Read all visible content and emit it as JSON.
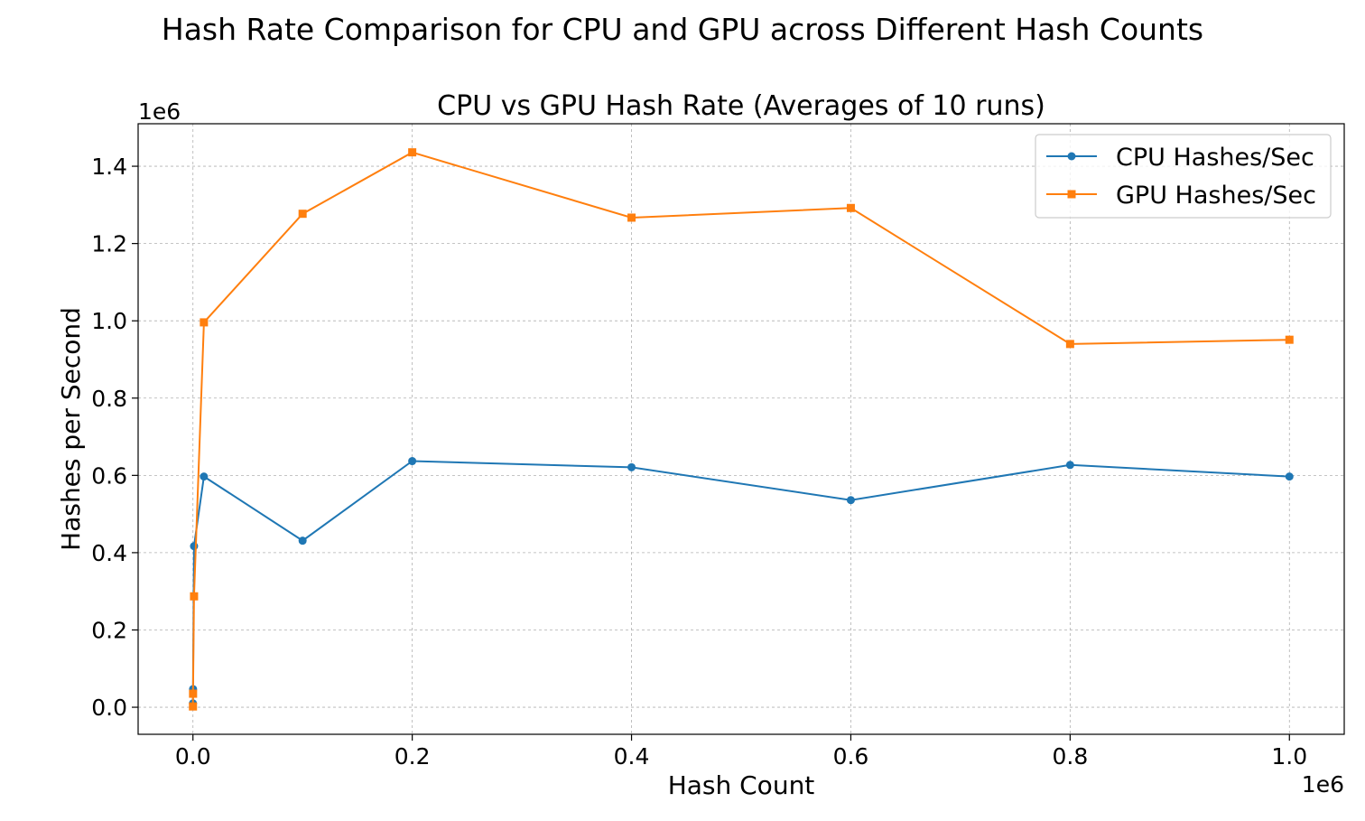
{
  "chart_data": {
    "type": "line",
    "title": "Hash Rate Comparison for CPU and GPU across Different Hash Counts",
    "subtitle": "CPU vs GPU Hash Rate (Averages of 10 runs)",
    "xlabel": "Hash Count",
    "ylabel": "Hashes per Second",
    "x_offset_label": "1e6",
    "y_offset_label": "1e6",
    "xlim": [
      -50000,
      1050000
    ],
    "ylim": [
      -70000,
      1510000
    ],
    "x_ticks": [
      0,
      200000,
      400000,
      600000,
      800000,
      1000000
    ],
    "x_tick_labels": [
      "0.0",
      "0.2",
      "0.4",
      "0.6",
      "0.8",
      "1.0"
    ],
    "y_ticks": [
      0,
      200000,
      400000,
      600000,
      800000,
      1000000,
      1200000,
      1400000
    ],
    "y_tick_labels": [
      "0.0",
      "0.2",
      "0.4",
      "0.6",
      "0.8",
      "1.0",
      "1.2",
      "1.4"
    ],
    "grid": true,
    "legend_position": "top-right",
    "x": [
      10,
      100,
      1000,
      10000,
      100000,
      200000,
      400000,
      600000,
      800000,
      1000000
    ],
    "series": [
      {
        "name": "CPU Hashes/Sec",
        "color": "#1f77b4",
        "marker": "circle",
        "values": [
          10000,
          47000,
          417000,
          597000,
          431000,
          637000,
          621000,
          536000,
          627000,
          597000
        ]
      },
      {
        "name": "GPU Hashes/Sec",
        "color": "#ff7f0e",
        "marker": "square",
        "values": [
          2000,
          35000,
          287000,
          996000,
          1277000,
          1436000,
          1267000,
          1292000,
          940000,
          951000
        ]
      }
    ]
  }
}
